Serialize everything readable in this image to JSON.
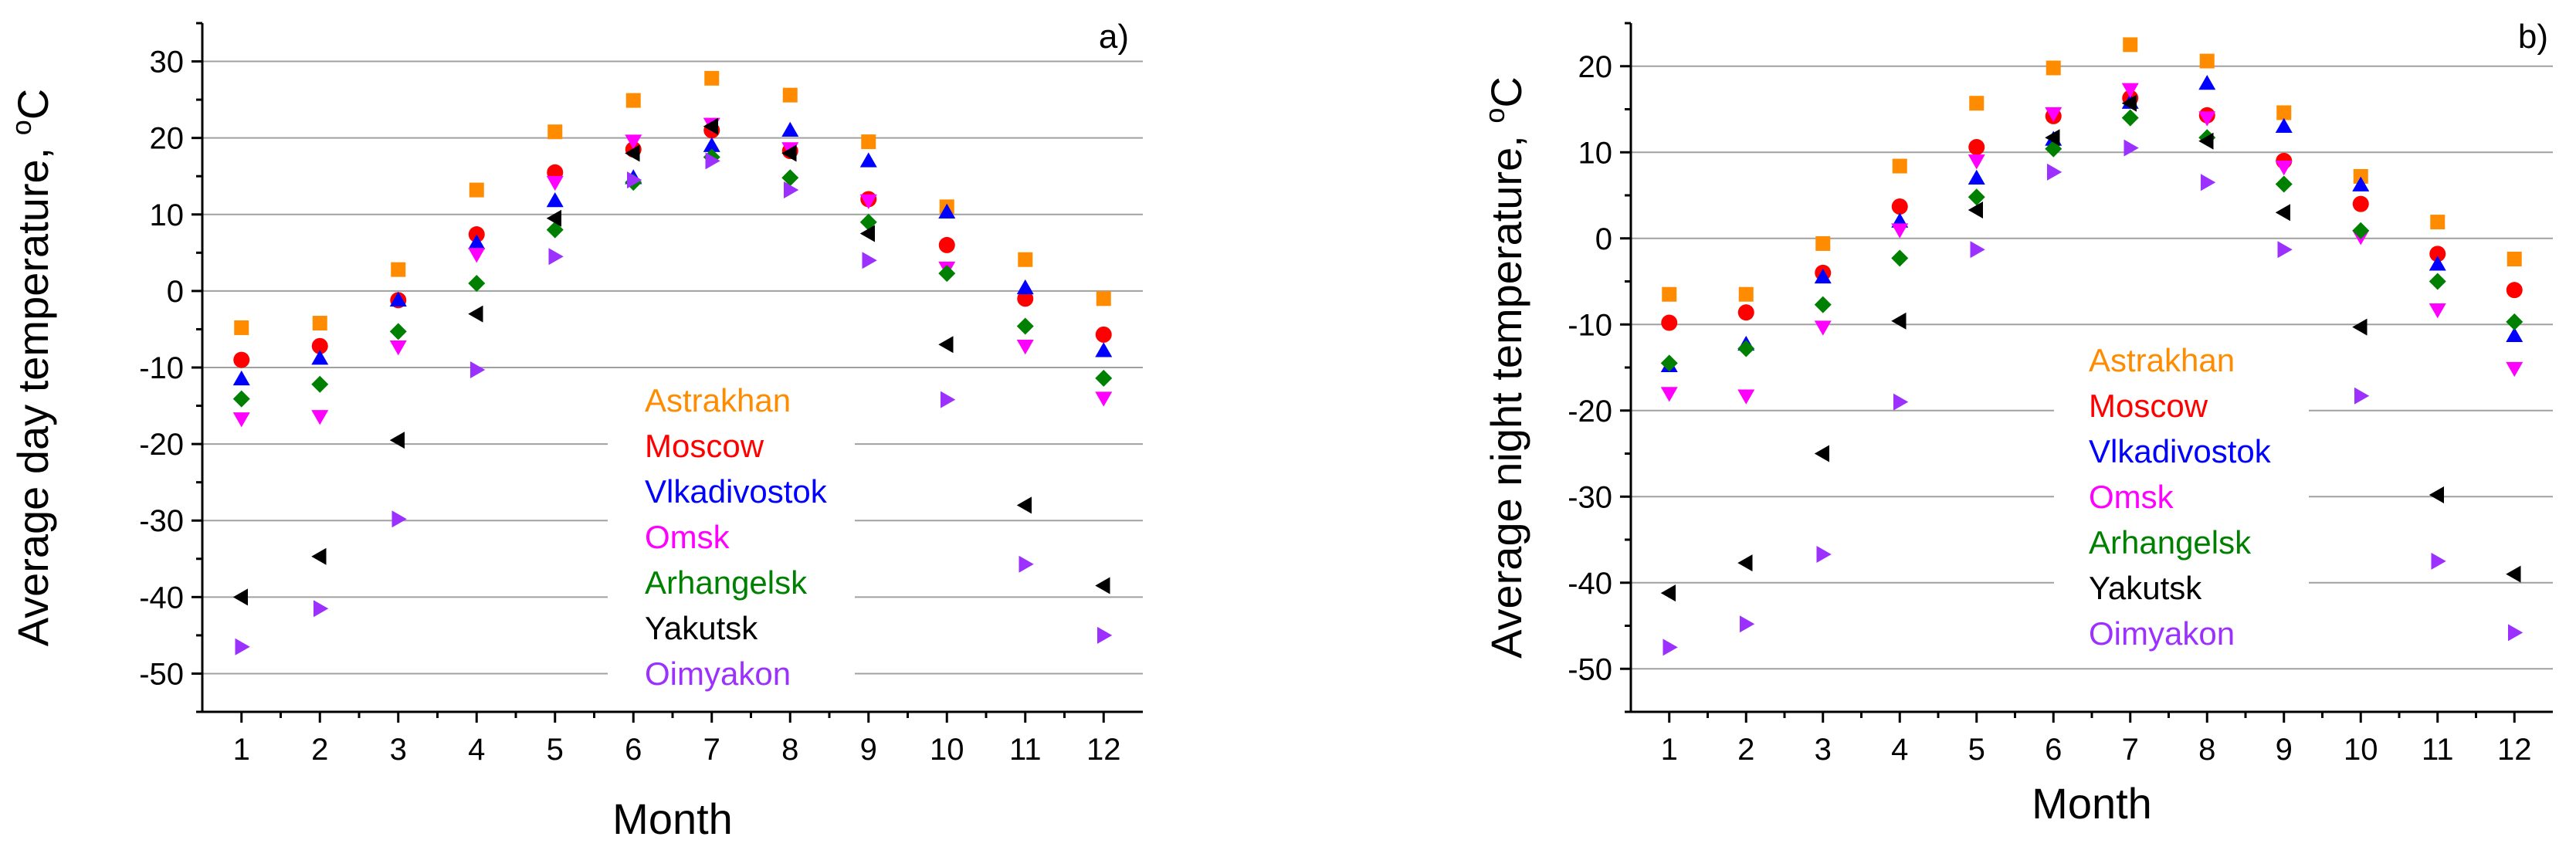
{
  "chart_data": [
    {
      "panel_label": "a)",
      "type": "scatter",
      "xlabel": "Month",
      "ylabel": "Average day temperature, ",
      "ylabel_unit_sup": "o",
      "ylabel_unit": "C",
      "x": [
        1,
        2,
        3,
        4,
        5,
        6,
        7,
        8,
        9,
        10,
        11,
        12
      ],
      "xticks": [
        "1",
        "2",
        "3",
        "4",
        "5",
        "6",
        "7",
        "8",
        "9",
        "10",
        "11",
        "12"
      ],
      "xlim": [
        0.5,
        12.5
      ],
      "ylim": [
        -55,
        35
      ],
      "yticks": [
        -50,
        -40,
        -30,
        -20,
        -10,
        0,
        10,
        20,
        30
      ],
      "ytick_labels": [
        "-50",
        "-40",
        "-30",
        "-20",
        "-10",
        "0",
        "10",
        "20",
        "30"
      ],
      "legend_position": "center",
      "series": [
        {
          "name": "Astrakhan",
          "color": "#ff8c00",
          "marker": "square",
          "values": [
            -4.8,
            -4.2,
            2.8,
            13.2,
            20.8,
            24.9,
            27.8,
            25.6,
            19.5,
            11,
            4.1,
            -1
          ]
        },
        {
          "name": "Moscow",
          "color": "#ff0000",
          "marker": "circle",
          "values": [
            -9,
            -7.2,
            -1.2,
            7.4,
            15.5,
            18.5,
            21,
            18.3,
            12,
            6,
            -1,
            -5.7
          ]
        },
        {
          "name": "Vlkadivostok",
          "color": "#0000ff",
          "marker": "triangle-up",
          "values": [
            -11.5,
            -8.8,
            -1.2,
            6.3,
            11.8,
            14.8,
            19,
            21,
            17,
            10.3,
            0.4,
            -7.8
          ]
        },
        {
          "name": "Omsk",
          "color": "#ff00ff",
          "marker": "triangle-down",
          "values": [
            -16.7,
            -16.4,
            -7.3,
            4.8,
            14.2,
            19.6,
            21.8,
            18.6,
            11.8,
            3,
            -7.2,
            -14
          ]
        },
        {
          "name": "Arhangelsk",
          "color": "#008000",
          "marker": "diamond",
          "values": [
            -14.1,
            -12.2,
            -5.3,
            1,
            8,
            14.2,
            17.5,
            14.8,
            9,
            2.3,
            -4.6,
            -11.4
          ]
        },
        {
          "name": "Yakutsk",
          "color": "#000000",
          "marker": "triangle-left",
          "values": [
            -40,
            -34.7,
            -19.5,
            -3,
            9.5,
            18,
            21.5,
            18,
            7.5,
            -7,
            -28,
            -38.5
          ]
        },
        {
          "name": "Oimyakon",
          "color": "#9b30ff",
          "marker": "triangle-right",
          "values": [
            -46.5,
            -41.5,
            -29.8,
            -10.3,
            4.5,
            14.5,
            17,
            13.2,
            4,
            -14.2,
            -35.7,
            -45
          ]
        }
      ]
    },
    {
      "panel_label": "b)",
      "type": "scatter",
      "xlabel": "Month",
      "ylabel": "Average night temperature, ",
      "ylabel_unit_sup": "o",
      "ylabel_unit": "C",
      "x": [
        1,
        2,
        3,
        4,
        5,
        6,
        7,
        8,
        9,
        10,
        11,
        12
      ],
      "xticks": [
        "1",
        "2",
        "3",
        "4",
        "5",
        "6",
        "7",
        "8",
        "9",
        "10",
        "11",
        "12"
      ],
      "xlim": [
        0.5,
        12.5
      ],
      "ylim": [
        -55,
        25
      ],
      "yticks": [
        -50,
        -40,
        -30,
        -20,
        -10,
        0,
        10,
        20
      ],
      "ytick_labels": [
        "-50",
        "-40",
        "-30",
        "-20",
        "-10",
        "0",
        "10",
        "20"
      ],
      "legend_position": "center",
      "series": [
        {
          "name": "Astrakhan",
          "color": "#ff8c00",
          "marker": "square",
          "values": [
            -6.5,
            -6.5,
            -0.6,
            8.4,
            15.7,
            19.8,
            22.5,
            20.6,
            14.6,
            7.2,
            1.9,
            -2.4
          ]
        },
        {
          "name": "Moscow",
          "color": "#ff0000",
          "marker": "circle",
          "values": [
            -9.8,
            -8.6,
            -4,
            3.7,
            10.6,
            14.2,
            16.3,
            14.3,
            9,
            4,
            -1.8,
            -6
          ]
        },
        {
          "name": "Vlkadivostok",
          "color": "#0000ff",
          "marker": "triangle-up",
          "values": [
            -14.8,
            -12.3,
            -4.5,
            2,
            7,
            11.5,
            15.8,
            18,
            13,
            6.2,
            -3,
            -11.3
          ]
        },
        {
          "name": "Omsk",
          "color": "#ff00ff",
          "marker": "triangle-down",
          "values": [
            -18,
            -18.3,
            -10.3,
            1,
            9,
            14.5,
            17.3,
            14,
            8.3,
            0.2,
            -8.3,
            -15.1
          ]
        },
        {
          "name": "Arhangelsk",
          "color": "#008000",
          "marker": "diamond",
          "values": [
            -14.5,
            -12.8,
            -7.7,
            -2.3,
            4.8,
            10.4,
            14,
            11.7,
            6.3,
            0.9,
            -5,
            -9.7
          ]
        },
        {
          "name": "Yakutsk",
          "color": "#000000",
          "marker": "triangle-left",
          "values": [
            -41.2,
            -37.7,
            -25,
            -9.6,
            3.3,
            11.7,
            15.7,
            11.3,
            3,
            -10.3,
            -29.8,
            -39
          ]
        },
        {
          "name": "Oimyakon",
          "color": "#9b30ff",
          "marker": "triangle-right",
          "values": [
            -47.5,
            -44.8,
            -36.7,
            -19,
            -1.3,
            7.7,
            10.5,
            6.5,
            -1.3,
            -18.3,
            -37.5,
            -45.8
          ]
        }
      ]
    }
  ]
}
